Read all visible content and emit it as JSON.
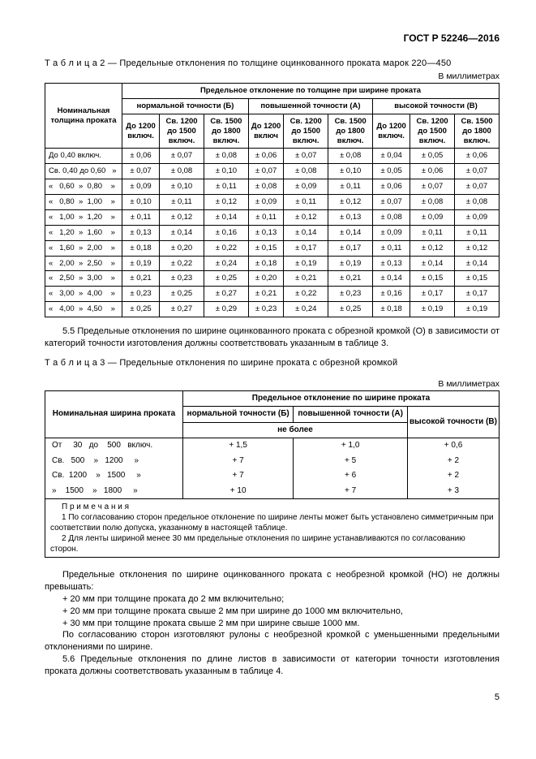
{
  "header": {
    "doc_id": "ГОСТ Р 52246—2016"
  },
  "table2": {
    "caption": "Т а б л и ц а   2 — Предельные отклонения по толщине оцинкованного проката марок 220—450",
    "units": "В миллиметрах",
    "h_nominal": "Номинальная толщина проката",
    "h_top": "Предельное отклонение по толщине при ширине проката",
    "h_normal": "нормальной точности (Б)",
    "h_high": "повышенной точности (А)",
    "h_top_acc": "высокой точности (В)",
    "sub": {
      "a": "До 1200 включ.",
      "b": "Св. 1200 до 1500 включ.",
      "c": "Св. 1500 до 1800 включ.",
      "d": "До 1200 включ",
      "e": "Св. 1200 до 1500 включ.",
      "f": "Св. 1500 до 1800 включ.",
      "g": "До 1200 включ.",
      "h": "Св. 1200 до 1500 включ.",
      "i": "Св. 1500 до 1800 включ."
    },
    "rows": [
      {
        "label": "До 0,40 включ.",
        "v": [
          "± 0,06",
          "± 0,07",
          "± 0,08",
          "± 0,06",
          "± 0,07",
          "± 0,08",
          "± 0,04",
          "± 0,05",
          "± 0,06"
        ]
      },
      {
        "label": "Св. 0,40 до 0,60   »",
        "v": [
          "± 0,07",
          "± 0,08",
          "± 0,10",
          "± 0,07",
          "± 0,08",
          "± 0,10",
          "± 0,05",
          "± 0,06",
          "± 0,07"
        ]
      },
      {
        "label": "«   0,60  »  0,80    »",
        "v": [
          "± 0,09",
          "± 0,10",
          "± 0,11",
          "± 0,08",
          "± 0,09",
          "± 0,11",
          "± 0,06",
          "± 0,07",
          "± 0,07"
        ]
      },
      {
        "label": "«   0,80  »  1,00    »",
        "v": [
          "± 0,10",
          "± 0,11",
          "± 0,12",
          "± 0,09",
          "± 0,11",
          "± 0,12",
          "± 0,07",
          "± 0,08",
          "± 0,08"
        ]
      },
      {
        "label": "«   1,00  »  1,20    »",
        "v": [
          "± 0,11",
          "± 0,12",
          "± 0,14",
          "± 0,11",
          "± 0,12",
          "± 0,13",
          "± 0,08",
          "± 0,09",
          "± 0,09"
        ]
      },
      {
        "label": "«   1,20  »  1,60    »",
        "v": [
          "± 0,13",
          "± 0,14",
          "± 0,16",
          "± 0,13",
          "± 0,14",
          "± 0,14",
          "± 0,09",
          "± 0,11",
          "± 0,11"
        ]
      },
      {
        "label": "«   1,60  »  2,00    »",
        "v": [
          "± 0,18",
          "± 0,20",
          "± 0,22",
          "± 0,15",
          "± 0,17",
          "± 0,17",
          "± 0,11",
          "± 0,12",
          "± 0,12"
        ]
      },
      {
        "label": "«   2,00  »  2,50    »",
        "v": [
          "± 0,19",
          "± 0,22",
          "± 0,24",
          "± 0,18",
          "± 0,19",
          "± 0,19",
          "± 0,13",
          "± 0,14",
          "± 0,14"
        ]
      },
      {
        "label": "«   2,50  »  3,00    »",
        "v": [
          "± 0,21",
          "± 0,23",
          "± 0,25",
          "± 0,20",
          "± 0,21",
          "± 0,21",
          "± 0,14",
          "± 0,15",
          "± 0,15"
        ]
      },
      {
        "label": "«   3,00  »  4,00    »",
        "v": [
          "± 0,23",
          "± 0,25",
          "± 0,27",
          "± 0,21",
          "± 0,22",
          "± 0,23",
          "± 0,16",
          "± 0,17",
          "± 0,17"
        ]
      },
      {
        "label": "«   4,00  »  4,50    »",
        "v": [
          "± 0,25",
          "± 0,27",
          "± 0,29",
          "± 0,23",
          "± 0,24",
          "± 0,25",
          "± 0,18",
          "± 0,19",
          "± 0,19"
        ]
      }
    ]
  },
  "p55": "5.5 Предельные отклонения по ширине оцинкованного проката с обрезной кромкой (О) в зависимости от категорий точности изготовления должны соответствовать указанным в таблице 3.",
  "table3": {
    "caption": "Т а б л и ц а   3 — Предельные отклонения по ширине проката с обрезной кромкой",
    "units": "В миллиметрах",
    "h_nominal": "Номинальная ширина проката",
    "h_top": "Предельное отклонение по ширине проката",
    "h_normal": "нормальной точности (Б)",
    "h_high": "повышенной точности (А)",
    "h_top_acc": "высокой  точности (В)",
    "h_nomore": "не более",
    "rows": [
      {
        "label": "От     30   до    500   включ.",
        "v": [
          "+ 1,5",
          "+ 1,0",
          "+ 0,6"
        ]
      },
      {
        "label": "Св.   500    »   1200     »",
        "v": [
          "+ 7",
          "+ 5",
          "+ 2"
        ]
      },
      {
        "label": "Св.  1200    »   1500     »",
        "v": [
          "+ 7",
          "+ 6",
          "+ 2"
        ]
      },
      {
        "label": "»    1500    »   1800     »",
        "v": [
          "+ 10",
          "+ 7",
          "+ 3"
        ]
      }
    ],
    "notes_title": "П р и м е ч а н и я",
    "note1": "1 По согласованию сторон предельное отклонение по ширине ленты может быть установлено симметричным при соответствии полю допуска, указанному в настоящей таблице.",
    "note2": "2 Для ленты шириной менее 30 мм предельные отклонения по ширине устанавливаются по согласованию сторон."
  },
  "p_after": {
    "p1": "Предельные отклонения по ширине оцинкованного проката с необрезной кромкой (НО) не должны превышать:",
    "b1": "+ 20 мм при толщине проката до 2 мм включительно;",
    "b2": "+ 20 мм при толщине проката свыше 2 мм при ширине до 1000 мм включительно,",
    "b3": "+ 30 мм при толщине проката свыше 2 мм при ширине свыше 1000 мм.",
    "p2": "По согласованию сторон изготовляют рулоны с необрезной кромкой с уменьшенными предельными отклонениями по ширине.",
    "p56": "5.6 Предельные отклонения по длине листов в зависимости от категории точности изготовления проката должны соответствовать указанным в таблице 4."
  },
  "page": "5"
}
